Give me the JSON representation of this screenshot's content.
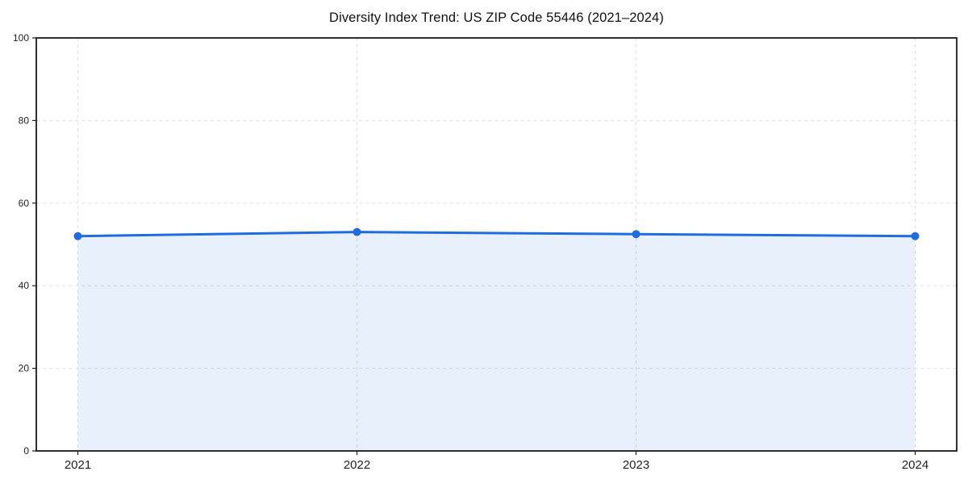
{
  "chart_data": {
    "type": "line",
    "title": "Diversity Index Trend: US ZIP Code 55446 (2021–2024)",
    "categories": [
      "2021",
      "2022",
      "2023",
      "2024"
    ],
    "values": [
      52,
      53,
      52.5,
      52
    ],
    "ylim": [
      0,
      100
    ],
    "yticks": [
      0,
      20,
      40,
      60,
      80,
      100
    ],
    "grid": true,
    "legend": "none",
    "area_fill": true,
    "colors": {
      "line": "#1e6ce0",
      "marker": "#1e6ce0",
      "area_fill": "#1e6ce0",
      "area_fill_opacity": 0.1,
      "grid": "#e3e3e3",
      "axis": "#1a1a1a",
      "tick_label": "#222222",
      "background": "#ffffff"
    }
  }
}
